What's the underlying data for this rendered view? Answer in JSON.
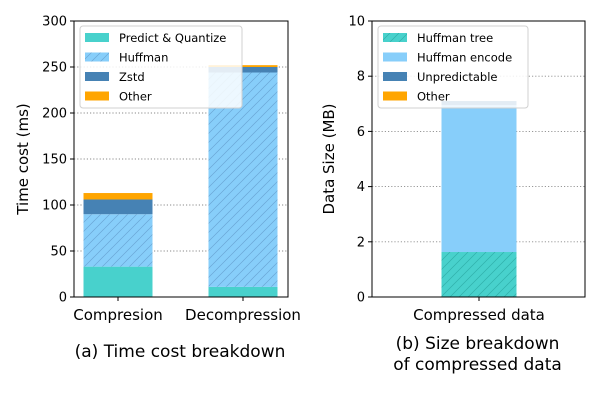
{
  "chart_data": [
    {
      "type": "bar",
      "stacked": true,
      "caption": "(a) Time cost breakdown",
      "ylabel": "Time cost (ms)",
      "xlabel": "",
      "categories": [
        "Compresion",
        "Decompression"
      ],
      "ylim": [
        0,
        300
      ],
      "yticks": [
        0,
        50,
        100,
        150,
        200,
        250,
        300
      ],
      "grid": "y-dotted",
      "legend_position": "top-left",
      "series": [
        {
          "name": "Predict & Quantize",
          "values": [
            33,
            11
          ],
          "color": "#48d1cc",
          "hatch": false
        },
        {
          "name": "Huffman",
          "values": [
            57,
            233
          ],
          "color": "#87cefa",
          "hatch": true
        },
        {
          "name": "Zstd",
          "values": [
            16,
            6
          ],
          "color": "#4682b4",
          "hatch": false
        },
        {
          "name": "Other",
          "values": [
            7,
            2
          ],
          "color": "#ffa500",
          "hatch": false
        }
      ]
    },
    {
      "type": "bar",
      "stacked": true,
      "caption": "(b) Size breakdown of compressed data",
      "caption_lines": [
        "(b) Size breakdown",
        "of compressed data"
      ],
      "ylabel": "Data Size (MB)",
      "xlabel": "",
      "categories": [
        "Compressed data"
      ],
      "ylim": [
        0,
        10
      ],
      "yticks": [
        0,
        2,
        4,
        6,
        8,
        10
      ],
      "grid": "y-dotted",
      "legend_position": "top-left",
      "series": [
        {
          "name": "Huffman tree",
          "values": [
            1.63
          ],
          "color": "#48d1cc",
          "hatch": true
        },
        {
          "name": "Huffman encode",
          "values": [
            5.32
          ],
          "color": "#87cefa",
          "hatch": false
        },
        {
          "name": "Unpredictable",
          "values": [
            0.15
          ],
          "color": "#4682b4",
          "hatch": false
        },
        {
          "name": "Other",
          "values": [
            0.0
          ],
          "color": "#ffa500",
          "hatch": false
        }
      ]
    }
  ]
}
